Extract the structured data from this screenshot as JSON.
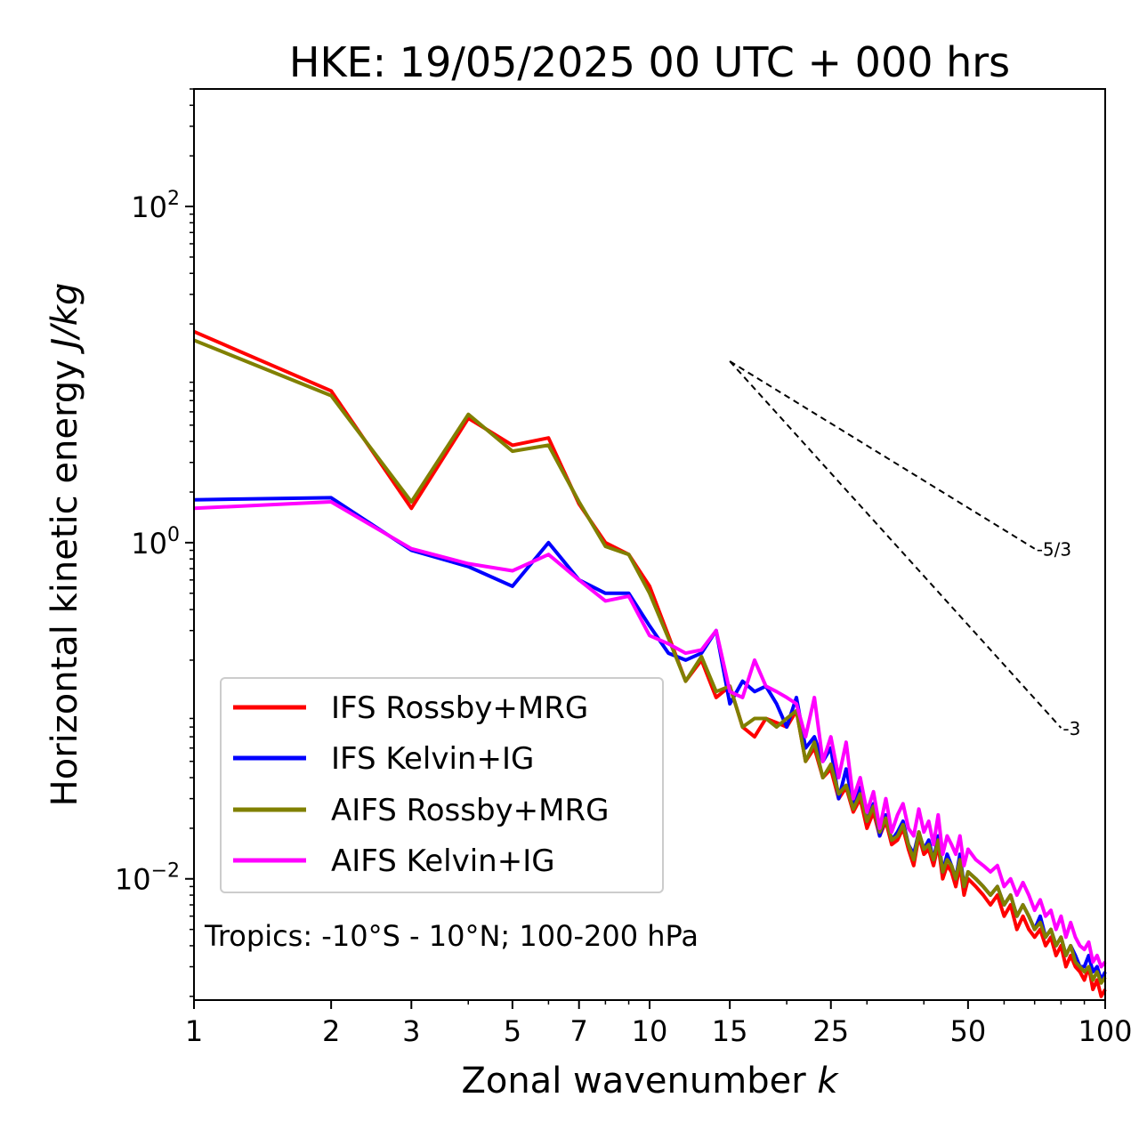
{
  "chart_data": {
    "type": "line",
    "title": "HKE: 19/05/2025 00 UTC + 000 hrs",
    "xlabel": "Zonal wavenumber",
    "xlabel_var": "k",
    "ylabel": "Horizontal kinetic energy",
    "ylabel_units": "J/kg",
    "xscale": "log",
    "yscale": "log",
    "xlim": [
      1,
      100
    ],
    "ylim": [
      0.0019,
      500
    ],
    "xticks": [
      1,
      2,
      3,
      5,
      7,
      10,
      15,
      25,
      50,
      100
    ],
    "xtick_labels": [
      "1",
      "2",
      "3",
      "5",
      "7",
      "10",
      "15",
      "25",
      "50",
      "100"
    ],
    "yticks": [
      {
        "base": "10",
        "exp": "−2",
        "value": 0.01
      },
      {
        "base": "10",
        "exp": "0",
        "value": 1
      },
      {
        "base": "10",
        "exp": "2",
        "value": 100
      }
    ],
    "annotation": "Tropics: -10°S - 10°N; 100-200 hPa",
    "legend_position": "lower-left",
    "reference_lines": [
      {
        "label": "-5/3",
        "slope": -1.6667,
        "x_start": 15,
        "x_end": 70,
        "y_start": 12
      },
      {
        "label": "-3",
        "slope": -3,
        "x_start": 15,
        "x_end": 80,
        "y_start": 12
      }
    ],
    "x": [
      1,
      2,
      3,
      4,
      5,
      6,
      7,
      8,
      9,
      10,
      11,
      12,
      13,
      14,
      15,
      16,
      17,
      18,
      19,
      20,
      21,
      22,
      23,
      24,
      25,
      26,
      27,
      28,
      29,
      30,
      31,
      32,
      33,
      34,
      35,
      36,
      37,
      38,
      39,
      40,
      41,
      42,
      43,
      44,
      45,
      46,
      47,
      48,
      49,
      50,
      52,
      54,
      56,
      58,
      60,
      62,
      64,
      66,
      68,
      70,
      72,
      74,
      76,
      78,
      80,
      82,
      84,
      86,
      88,
      90,
      92,
      94,
      96,
      98,
      100
    ],
    "series": [
      {
        "name": "IFS Rossby+MRG",
        "color": "#ff0000",
        "values": [
          18,
          8,
          1.6,
          5.5,
          3.8,
          4.2,
          1.7,
          1,
          0.85,
          0.55,
          0.28,
          0.15,
          0.2,
          0.12,
          0.14,
          0.08,
          0.07,
          0.09,
          0.085,
          0.08,
          0.1,
          0.05,
          0.06,
          0.04,
          0.045,
          0.03,
          0.035,
          0.025,
          0.03,
          0.02,
          0.025,
          0.018,
          0.022,
          0.016,
          0.017,
          0.02,
          0.015,
          0.012,
          0.018,
          0.014,
          0.015,
          0.012,
          0.016,
          0.01,
          0.012,
          0.011,
          0.009,
          0.012,
          0.008,
          0.01,
          0.009,
          0.008,
          0.007,
          0.008,
          0.006,
          0.007,
          0.005,
          0.006,
          0.005,
          0.0045,
          0.005,
          0.004,
          0.0045,
          0.0035,
          0.004,
          0.003,
          0.0035,
          0.003,
          0.0028,
          0.0025,
          0.003,
          0.0022,
          0.0025,
          0.002,
          0.0022
        ]
      },
      {
        "name": "IFS Kelvin+IG",
        "color": "#0000ff",
        "values": [
          1.8,
          1.85,
          0.9,
          0.72,
          0.55,
          1,
          0.6,
          0.5,
          0.5,
          0.32,
          0.22,
          0.2,
          0.22,
          0.3,
          0.11,
          0.15,
          0.13,
          0.14,
          0.11,
          0.08,
          0.12,
          0.06,
          0.07,
          0.05,
          0.06,
          0.03,
          0.045,
          0.028,
          0.035,
          0.022,
          0.028,
          0.018,
          0.024,
          0.017,
          0.019,
          0.022,
          0.016,
          0.014,
          0.019,
          0.015,
          0.017,
          0.013,
          0.018,
          0.011,
          0.014,
          0.012,
          0.01,
          0.014,
          0.009,
          0.011,
          0.01,
          0.009,
          0.008,
          0.009,
          0.007,
          0.008,
          0.006,
          0.007,
          0.006,
          0.005,
          0.006,
          0.0045,
          0.005,
          0.004,
          0.0045,
          0.0035,
          0.004,
          0.0035,
          0.003,
          0.003,
          0.0035,
          0.0028,
          0.003,
          0.0025,
          0.0028
        ]
      },
      {
        "name": "AIFS Rossby+MRG",
        "color": "#808000",
        "values": [
          16,
          7.5,
          1.75,
          5.8,
          3.5,
          3.8,
          1.75,
          0.95,
          0.85,
          0.5,
          0.27,
          0.15,
          0.21,
          0.13,
          0.14,
          0.08,
          0.09,
          0.09,
          0.08,
          0.09,
          0.1,
          0.05,
          0.065,
          0.04,
          0.048,
          0.032,
          0.036,
          0.026,
          0.032,
          0.022,
          0.027,
          0.019,
          0.023,
          0.017,
          0.018,
          0.021,
          0.016,
          0.013,
          0.019,
          0.015,
          0.016,
          0.013,
          0.017,
          0.011,
          0.013,
          0.012,
          0.01,
          0.013,
          0.009,
          0.011,
          0.01,
          0.009,
          0.008,
          0.009,
          0.007,
          0.008,
          0.006,
          0.007,
          0.006,
          0.005,
          0.0055,
          0.0045,
          0.005,
          0.004,
          0.0045,
          0.0035,
          0.004,
          0.0032,
          0.003,
          0.0028,
          0.003,
          0.0025,
          0.0028,
          0.0024,
          0.0026
        ]
      },
      {
        "name": "AIFS Kelvin+IG",
        "color": "#ff00ff",
        "values": [
          1.6,
          1.75,
          0.92,
          0.75,
          0.68,
          0.85,
          0.6,
          0.45,
          0.48,
          0.28,
          0.25,
          0.22,
          0.23,
          0.3,
          0.13,
          0.12,
          0.2,
          0.14,
          0.13,
          0.12,
          0.11,
          0.07,
          0.12,
          0.05,
          0.07,
          0.04,
          0.065,
          0.03,
          0.04,
          0.025,
          0.033,
          0.02,
          0.03,
          0.019,
          0.024,
          0.028,
          0.02,
          0.018,
          0.026,
          0.019,
          0.022,
          0.016,
          0.024,
          0.014,
          0.018,
          0.016,
          0.014,
          0.018,
          0.012,
          0.015,
          0.013,
          0.012,
          0.011,
          0.012,
          0.009,
          0.01,
          0.008,
          0.0095,
          0.008,
          0.0065,
          0.0075,
          0.006,
          0.0065,
          0.005,
          0.006,
          0.0045,
          0.0055,
          0.0045,
          0.004,
          0.0038,
          0.0042,
          0.0032,
          0.0035,
          0.003,
          0.0032
        ]
      }
    ]
  }
}
